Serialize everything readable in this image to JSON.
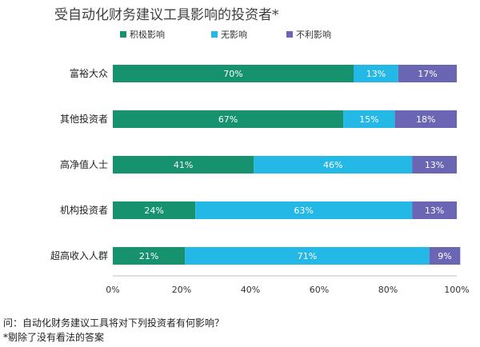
{
  "chart_data": {
    "type": "bar",
    "stacked": true,
    "orientation": "horizontal",
    "title": "受自动化财务建议工具影响的投资者*",
    "categories": [
      "富裕大众",
      "其他投资者",
      "高净值人士",
      "机构投资者",
      "超高收入人群"
    ],
    "series": [
      {
        "name": "积极影响",
        "values": [
          70,
          67,
          41,
          24,
          21
        ],
        "color": "#16936e"
      },
      {
        "name": "无影响",
        "values": [
          13,
          15,
          46,
          63,
          71
        ],
        "color": "#24b8e6"
      },
      {
        "name": "不利影响",
        "values": [
          17,
          18,
          13,
          13,
          9
        ],
        "color": "#6b66b3"
      }
    ],
    "xlim": [
      0,
      100
    ],
    "xticks": [
      "0%",
      "20%",
      "40%",
      "60%",
      "80%",
      "100%"
    ],
    "grid": false,
    "legend_position": "top"
  },
  "footnotes": [
    "问：自动化财务建议工具将对下列投资者有何影响？",
    "*剔除了没有看法的答案"
  ]
}
